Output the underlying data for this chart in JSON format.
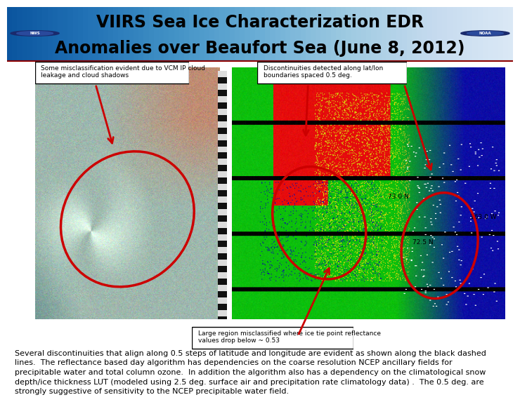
{
  "title_line1": "VIIRS Sea Ice Characterization EDR",
  "title_line2": "Anomalies over Beaufort Sea (June 8, 2012)",
  "title_fontsize": 17,
  "title_color": "#000000",
  "header_bg_top": "#c8d8e8",
  "header_bg_bot": "#a0b8cc",
  "bg_color": "#ffffff",
  "annotation1": "Some misclassification evident due to VCM IP cloud\nleakage and cloud shadows",
  "annotation2": "Discontinuities detected along lat/lon\nboundaries spaced 0.5 deg.",
  "annotation3": "Large region misclassified where ice tie point reflectance\nvalues drop below ~ 0.53",
  "body_text": "Several discontinuities that align along 0.5 steps of latitude and longitude are evident as shown along the black dashed\nlines.  The reflectance based day algorithm has dependencies on the coarse resolution NCEP ancillary fields for\nprecipitable water and total column ozone.  In addition the algorithm also has a dependency on the climatological snow\ndepth/ice thickness LUT (modeled using 2.5 deg. surface air and precipitation rate climatology data) .  The 0.5 deg. are\nstrongly suggestive of sensitivity to the NCEP precipitable water field.",
  "body_fontsize": 8.0,
  "label_725N": "72.5 N",
  "label_730N": "73.0 N",
  "label_163W": "163.0 W"
}
